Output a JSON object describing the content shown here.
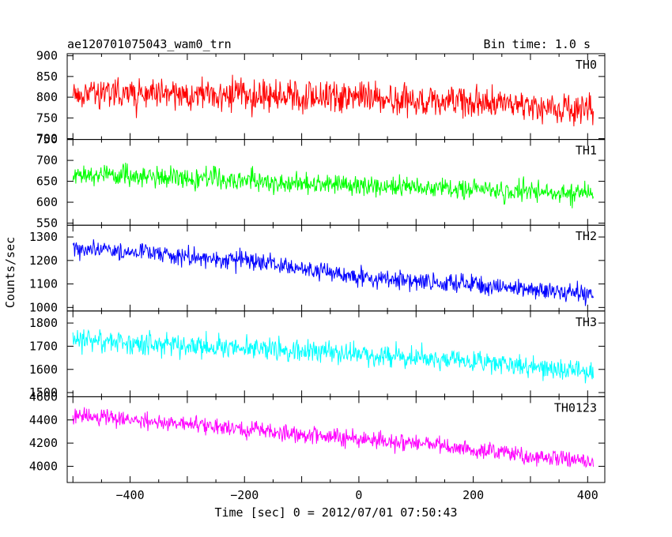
{
  "chart_data": {
    "type": "line",
    "title_left": "ae120701075043_wam0_trn",
    "title_right": "Bin time: 1.0 s",
    "xlabel": "Time [sec] 0 = 2012/07/01 07:50:43",
    "ylabel": "Counts/sec",
    "xlim": [
      -510,
      430
    ],
    "x_ticks": [
      -400,
      -200,
      0,
      200,
      400
    ],
    "x_start": -500,
    "x_end": 410,
    "bin_time": 1.0,
    "panels": [
      {
        "name": "TH0",
        "color": "#ff0000",
        "ylim": [
          698,
          905
        ],
        "yticks": [
          700,
          750,
          800,
          850,
          900
        ],
        "ytick_labels": [
          "700",
          "750",
          "800",
          "850",
          "900"
        ],
        "trend": [
          [
            -500,
            808
          ],
          [
            0,
            800
          ],
          [
            410,
            770
          ]
        ],
        "scatter": 40
      },
      {
        "name": "TH1",
        "color": "#00ff00",
        "ylim": [
          545,
          750
        ],
        "yticks": [
          550,
          600,
          650,
          700,
          750
        ],
        "ytick_labels": [
          "550",
          "600",
          "650",
          "700",
          "750"
        ],
        "trend": [
          [
            -500,
            668
          ],
          [
            0,
            640
          ],
          [
            410,
            620
          ]
        ],
        "scatter": 26
      },
      {
        "name": "TH2",
        "color": "#0000ff",
        "ylim": [
          985,
          1350
        ],
        "yticks": [
          1000,
          1100,
          1200,
          1300
        ],
        "ytick_labels": [
          "1000",
          "1100",
          "1200",
          "1300"
        ],
        "trend": [
          [
            -500,
            1255
          ],
          [
            -200,
            1200
          ],
          [
            0,
            1130
          ],
          [
            410,
            1055
          ]
        ],
        "scatter": 40
      },
      {
        "name": "TH3",
        "color": "#00ffff",
        "ylim": [
          1482,
          1852
        ],
        "yticks": [
          1500,
          1600,
          1700,
          1800
        ],
        "ytick_labels": [
          "1500",
          "1600",
          "1700",
          "1800"
        ],
        "trend": [
          [
            -500,
            1725
          ],
          [
            0,
            1670
          ],
          [
            410,
            1590
          ]
        ],
        "scatter": 48
      },
      {
        "name": "TH0123",
        "color": "#ff00ff",
        "ylim": [
          3860,
          4600
        ],
        "yticks": [
          4000,
          4200,
          4400,
          4600
        ],
        "ytick_labels": [
          "4000",
          "4200",
          "4400",
          "4600"
        ],
        "trend": [
          [
            -500,
            4440
          ],
          [
            0,
            4240
          ],
          [
            410,
            4040
          ]
        ],
        "scatter": 75
      }
    ]
  }
}
